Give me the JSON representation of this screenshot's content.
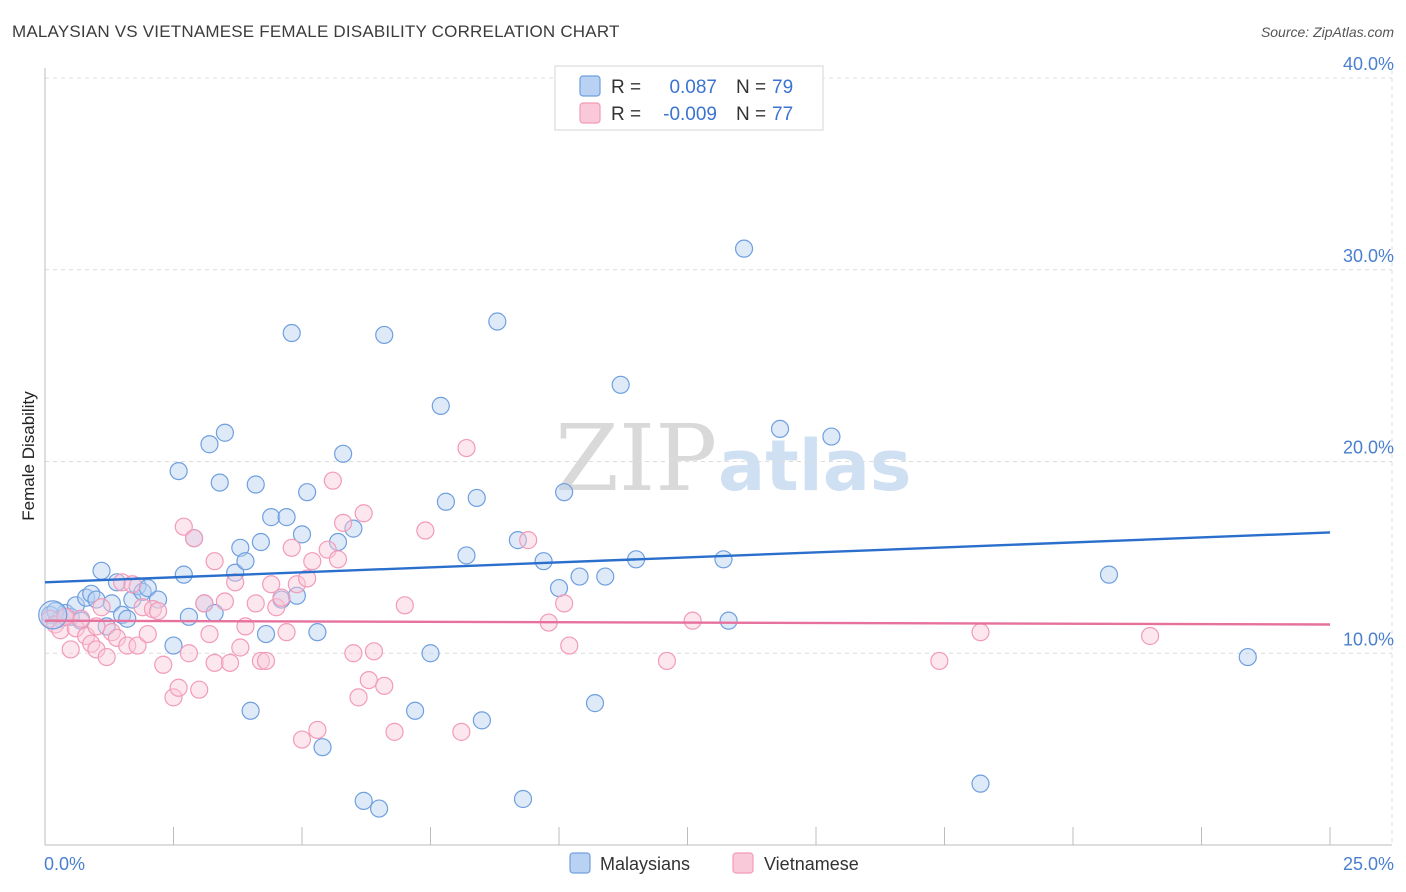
{
  "title": "MALAYSIAN VS VIETNAMESE FEMALE DISABILITY CORRELATION CHART",
  "source": "Source: ZipAtlas.com",
  "watermark": {
    "zip": "ZIP",
    "atlas": "atlas"
  },
  "chart_data": {
    "type": "scatter",
    "xlabel": "",
    "ylabel": "Female Disability",
    "xlim": [
      0,
      25
    ],
    "ylim": [
      0,
      40
    ],
    "x_tick_labels": {
      "min": "0.0%",
      "max": "25.0%"
    },
    "y_ticks": [
      {
        "value": 10,
        "label": "10.0%"
      },
      {
        "value": 20,
        "label": "20.0%"
      },
      {
        "value": 30,
        "label": "30.0%"
      },
      {
        "value": 40,
        "label": "40.0%"
      }
    ],
    "legend": [
      {
        "name": "Malaysians",
        "r_label": "R =",
        "r": "0.087",
        "n_label": "N =",
        "n": "79",
        "color": "#6f9fdf",
        "line": "#2a6fcc"
      },
      {
        "name": "Vietnamese",
        "r_label": "R =",
        "r": "-0.009",
        "n_label": "N =",
        "n": "77",
        "color": "#f29bb8",
        "line": "#e6719c"
      }
    ],
    "series": [
      {
        "name": "Malaysians",
        "trend": {
          "x0": 0,
          "y0": 13.7,
          "x1": 25,
          "y1": 16.3
        },
        "points": [
          [
            0.1,
            12.0
          ],
          [
            0.3,
            11.8
          ],
          [
            0.4,
            12.1
          ],
          [
            0.5,
            11.9
          ],
          [
            0.6,
            12.5
          ],
          [
            0.8,
            12.9
          ],
          [
            0.9,
            13.1
          ],
          [
            1.0,
            12.8
          ],
          [
            1.1,
            14.3
          ],
          [
            1.2,
            11.4
          ],
          [
            1.3,
            12.6
          ],
          [
            1.4,
            13.7
          ],
          [
            1.5,
            12.0
          ],
          [
            1.6,
            11.8
          ],
          [
            1.7,
            12.8
          ],
          [
            1.8,
            13.5
          ],
          [
            1.9,
            13.2
          ],
          [
            2.0,
            13.4
          ],
          [
            2.2,
            12.8
          ],
          [
            2.5,
            10.4
          ],
          [
            2.6,
            19.5
          ],
          [
            2.7,
            14.1
          ],
          [
            2.8,
            11.9
          ],
          [
            2.9,
            16.0
          ],
          [
            3.1,
            12.6
          ],
          [
            3.2,
            20.9
          ],
          [
            3.3,
            12.1
          ],
          [
            3.4,
            18.9
          ],
          [
            3.5,
            21.5
          ],
          [
            3.7,
            14.2
          ],
          [
            3.8,
            15.5
          ],
          [
            3.9,
            14.8
          ],
          [
            4.0,
            7.0
          ],
          [
            4.1,
            18.8
          ],
          [
            4.2,
            15.8
          ],
          [
            4.3,
            11.0
          ],
          [
            4.4,
            17.1
          ],
          [
            4.6,
            12.8
          ],
          [
            4.7,
            17.1
          ],
          [
            4.8,
            26.7
          ],
          [
            4.9,
            13.0
          ],
          [
            5.0,
            16.2
          ],
          [
            5.1,
            18.4
          ],
          [
            5.3,
            11.1
          ],
          [
            5.4,
            5.1
          ],
          [
            5.7,
            15.8
          ],
          [
            5.8,
            20.4
          ],
          [
            6.0,
            16.5
          ],
          [
            6.2,
            2.3
          ],
          [
            6.5,
            1.9
          ],
          [
            6.6,
            26.6
          ],
          [
            7.2,
            7.0
          ],
          [
            7.5,
            10.0
          ],
          [
            7.7,
            22.9
          ],
          [
            7.8,
            17.9
          ],
          [
            8.2,
            15.1
          ],
          [
            8.4,
            18.1
          ],
          [
            8.5,
            6.5
          ],
          [
            8.8,
            27.3
          ],
          [
            9.2,
            15.9
          ],
          [
            9.3,
            2.4
          ],
          [
            9.7,
            14.8
          ],
          [
            10.0,
            13.4
          ],
          [
            10.1,
            18.4
          ],
          [
            10.4,
            14.0
          ],
          [
            10.7,
            7.4
          ],
          [
            10.9,
            14.0
          ],
          [
            11.2,
            24.0
          ],
          [
            11.5,
            14.9
          ],
          [
            13.2,
            14.9
          ],
          [
            13.3,
            11.7
          ],
          [
            13.6,
            31.1
          ],
          [
            14.3,
            21.7
          ],
          [
            15.3,
            21.3
          ],
          [
            18.2,
            3.2
          ],
          [
            20.7,
            14.1
          ],
          [
            23.4,
            9.8
          ],
          [
            0.2,
            12.2
          ],
          [
            0.7,
            11.7
          ]
        ]
      },
      {
        "name": "Vietnamese",
        "trend": {
          "x0": 0,
          "y0": 11.7,
          "x1": 25,
          "y1": 11.5
        },
        "points": [
          [
            0.1,
            11.8
          ],
          [
            0.2,
            11.5
          ],
          [
            0.3,
            11.2
          ],
          [
            0.4,
            11.9
          ],
          [
            0.5,
            10.2
          ],
          [
            0.6,
            11.3
          ],
          [
            0.7,
            11.8
          ],
          [
            0.8,
            10.9
          ],
          [
            0.9,
            10.5
          ],
          [
            1.0,
            10.2
          ],
          [
            1.1,
            12.4
          ],
          [
            1.2,
            9.8
          ],
          [
            1.3,
            11.1
          ],
          [
            1.4,
            10.8
          ],
          [
            1.5,
            13.7
          ],
          [
            1.6,
            10.4
          ],
          [
            1.7,
            13.6
          ],
          [
            1.8,
            10.4
          ],
          [
            1.9,
            12.4
          ],
          [
            2.0,
            11.0
          ],
          [
            2.1,
            12.3
          ],
          [
            2.2,
            12.2
          ],
          [
            2.3,
            9.4
          ],
          [
            2.5,
            7.7
          ],
          [
            2.6,
            8.2
          ],
          [
            2.7,
            16.6
          ],
          [
            2.8,
            10.0
          ],
          [
            2.9,
            16.0
          ],
          [
            3.0,
            8.1
          ],
          [
            3.1,
            12.6
          ],
          [
            3.2,
            11.0
          ],
          [
            3.3,
            9.5
          ],
          [
            3.3,
            14.8
          ],
          [
            3.5,
            12.7
          ],
          [
            3.6,
            9.5
          ],
          [
            3.7,
            13.7
          ],
          [
            3.8,
            10.3
          ],
          [
            3.9,
            11.4
          ],
          [
            4.1,
            12.6
          ],
          [
            4.2,
            9.6
          ],
          [
            4.3,
            9.6
          ],
          [
            4.4,
            13.6
          ],
          [
            4.5,
            12.4
          ],
          [
            4.6,
            12.9
          ],
          [
            4.7,
            11.1
          ],
          [
            4.8,
            15.5
          ],
          [
            4.9,
            13.6
          ],
          [
            5.0,
            5.5
          ],
          [
            5.1,
            13.9
          ],
          [
            5.2,
            14.8
          ],
          [
            5.3,
            6.0
          ],
          [
            5.5,
            15.4
          ],
          [
            5.6,
            19.0
          ],
          [
            5.7,
            14.9
          ],
          [
            5.8,
            16.8
          ],
          [
            6.0,
            10.0
          ],
          [
            6.1,
            7.7
          ],
          [
            6.2,
            17.3
          ],
          [
            6.3,
            8.6
          ],
          [
            6.4,
            10.1
          ],
          [
            6.6,
            8.3
          ],
          [
            6.8,
            5.9
          ],
          [
            7.0,
            12.5
          ],
          [
            7.4,
            16.4
          ],
          [
            8.1,
            5.9
          ],
          [
            8.2,
            20.7
          ],
          [
            9.4,
            15.9
          ],
          [
            9.8,
            11.6
          ],
          [
            10.1,
            12.6
          ],
          [
            10.2,
            10.4
          ],
          [
            12.1,
            9.6
          ],
          [
            12.6,
            11.7
          ],
          [
            17.4,
            9.6
          ],
          [
            18.2,
            11.1
          ],
          [
            21.5,
            10.9
          ],
          [
            0.4,
            11.9
          ],
          [
            1.0,
            11.4
          ]
        ]
      }
    ]
  }
}
